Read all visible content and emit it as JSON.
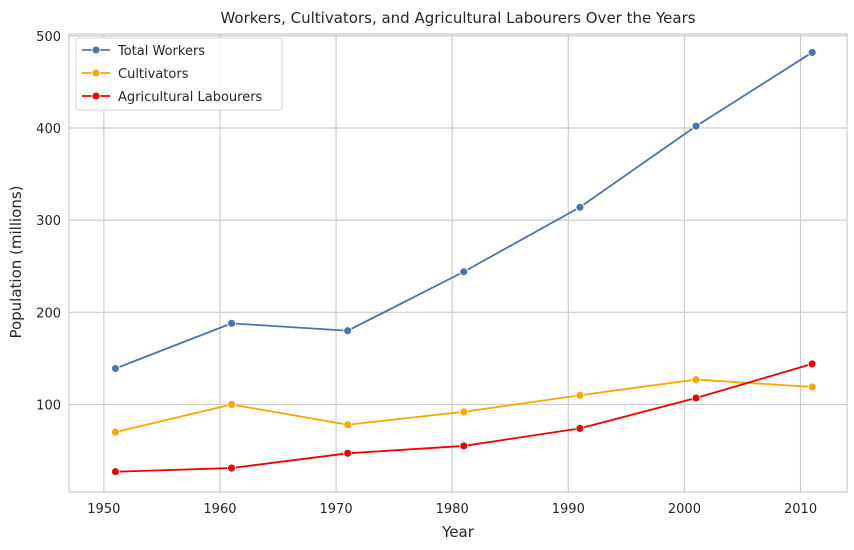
{
  "chart_data": {
    "type": "line",
    "title": "Workers, Cultivators, and Agricultural Labourers Over the Years",
    "xlabel": "Year",
    "ylabel": "Population (millions)",
    "x": [
      1951,
      1961,
      1971,
      1981,
      1991,
      2001,
      2011
    ],
    "xticks": [
      1950,
      1960,
      1970,
      1980,
      1990,
      2000,
      2010
    ],
    "yticks": [
      100,
      200,
      300,
      400,
      500
    ],
    "xlim": [
      1947,
      2014
    ],
    "ylim": [
      5,
      502
    ],
    "grid": true,
    "legend_position": "top-left",
    "series": [
      {
        "name": "Total Workers",
        "color": "#4c72b0",
        "values": [
          139,
          188,
          180,
          244,
          314,
          402,
          482
        ]
      },
      {
        "name": "Cultivators",
        "color": "#ffa500",
        "values": [
          70,
          100,
          78,
          92,
          110,
          127,
          119
        ]
      },
      {
        "name": "Agricultural Labourers",
        "color": "#ee0000",
        "values": [
          27,
          31,
          47,
          55,
          74,
          107,
          144
        ]
      }
    ]
  }
}
